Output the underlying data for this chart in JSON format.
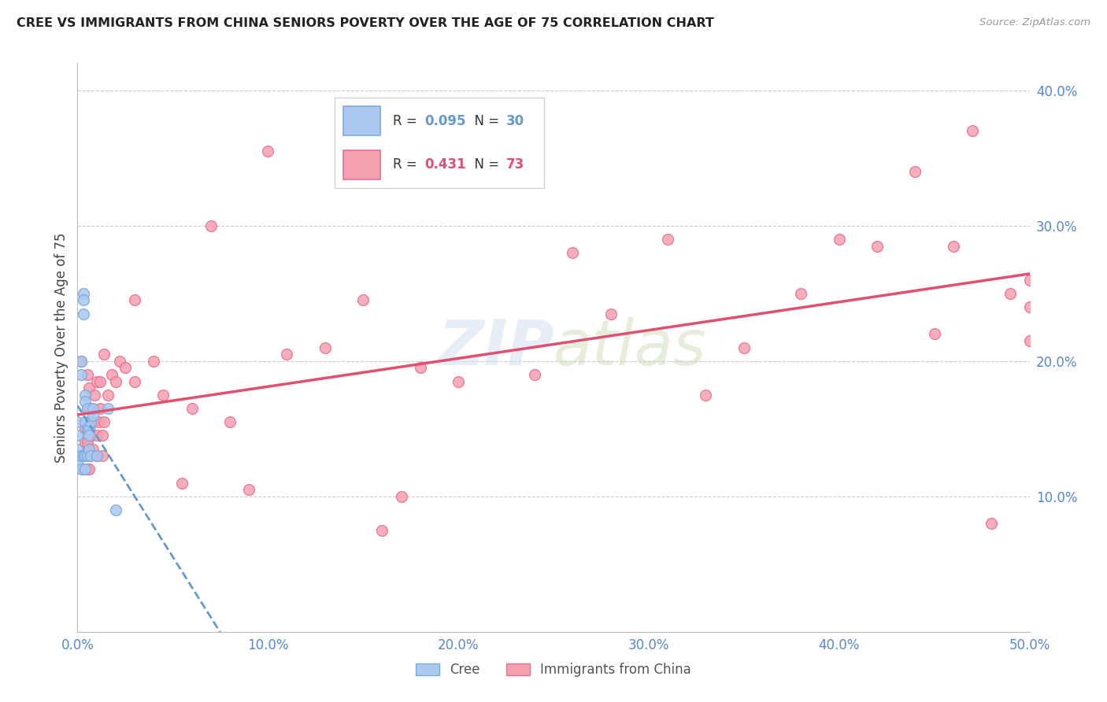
{
  "title": "CREE VS IMMIGRANTS FROM CHINA SENIORS POVERTY OVER THE AGE OF 75 CORRELATION CHART",
  "source": "Source: ZipAtlas.com",
  "ylabel": "Seniors Poverty Over the Age of 75",
  "xlim": [
    0.0,
    0.5
  ],
  "ylim": [
    0.0,
    0.42
  ],
  "xticks": [
    0.0,
    0.1,
    0.2,
    0.3,
    0.4,
    0.5
  ],
  "xticklabels": [
    "0.0%",
    "10.0%",
    "20.0%",
    "30.0%",
    "40.0%",
    "50.0%"
  ],
  "yticks_right": [
    0.1,
    0.2,
    0.3,
    0.4
  ],
  "yticklabels_right": [
    "10.0%",
    "20.0%",
    "30.0%",
    "40.0%"
  ],
  "cree_color_face": "#aac8f0",
  "cree_color_edge": "#7aaad8",
  "immigrants_color_face": "#f4a0b0",
  "immigrants_color_edge": "#e87090",
  "trendline_cree_color": "#6699cc",
  "trendline_immigrants_color": "#e05070",
  "background_color": "#ffffff",
  "grid_color": "#cccccc",
  "axis_tick_color": "#5588cc",
  "watermark_color": "#d0dff0",
  "cree_x": [
    0.0,
    0.0,
    0.0,
    0.0,
    0.002,
    0.002,
    0.002,
    0.002,
    0.003,
    0.003,
    0.003,
    0.003,
    0.004,
    0.004,
    0.004,
    0.004,
    0.004,
    0.005,
    0.005,
    0.005,
    0.006,
    0.006,
    0.006,
    0.007,
    0.007,
    0.008,
    0.008,
    0.01,
    0.016,
    0.02
  ],
  "cree_y": [
    0.125,
    0.135,
    0.145,
    0.155,
    0.19,
    0.2,
    0.13,
    0.12,
    0.25,
    0.245,
    0.235,
    0.13,
    0.13,
    0.12,
    0.175,
    0.17,
    0.155,
    0.165,
    0.13,
    0.15,
    0.15,
    0.145,
    0.135,
    0.155,
    0.13,
    0.16,
    0.165,
    0.13,
    0.165,
    0.09
  ],
  "immigrants_x": [
    0.002,
    0.003,
    0.003,
    0.004,
    0.004,
    0.004,
    0.005,
    0.005,
    0.005,
    0.005,
    0.005,
    0.005,
    0.006,
    0.006,
    0.006,
    0.006,
    0.006,
    0.007,
    0.007,
    0.007,
    0.008,
    0.008,
    0.009,
    0.01,
    0.01,
    0.01,
    0.011,
    0.012,
    0.012,
    0.013,
    0.013,
    0.014,
    0.014,
    0.016,
    0.018,
    0.02,
    0.022,
    0.025,
    0.03,
    0.03,
    0.04,
    0.045,
    0.055,
    0.06,
    0.07,
    0.08,
    0.09,
    0.1,
    0.11,
    0.13,
    0.15,
    0.16,
    0.17,
    0.18,
    0.2,
    0.24,
    0.26,
    0.28,
    0.31,
    0.33,
    0.35,
    0.38,
    0.4,
    0.42,
    0.44,
    0.45,
    0.46,
    0.47,
    0.48,
    0.49,
    0.5,
    0.5,
    0.5
  ],
  "immigrants_y": [
    0.2,
    0.12,
    0.13,
    0.13,
    0.14,
    0.15,
    0.12,
    0.13,
    0.14,
    0.15,
    0.165,
    0.19,
    0.12,
    0.135,
    0.15,
    0.165,
    0.18,
    0.13,
    0.145,
    0.165,
    0.135,
    0.155,
    0.175,
    0.13,
    0.145,
    0.185,
    0.155,
    0.185,
    0.165,
    0.13,
    0.145,
    0.155,
    0.205,
    0.175,
    0.19,
    0.185,
    0.2,
    0.195,
    0.245,
    0.185,
    0.2,
    0.175,
    0.11,
    0.165,
    0.3,
    0.155,
    0.105,
    0.355,
    0.205,
    0.21,
    0.245,
    0.075,
    0.1,
    0.195,
    0.185,
    0.19,
    0.28,
    0.235,
    0.29,
    0.175,
    0.21,
    0.25,
    0.29,
    0.285,
    0.34,
    0.22,
    0.285,
    0.37,
    0.08,
    0.25,
    0.215,
    0.26,
    0.24
  ]
}
